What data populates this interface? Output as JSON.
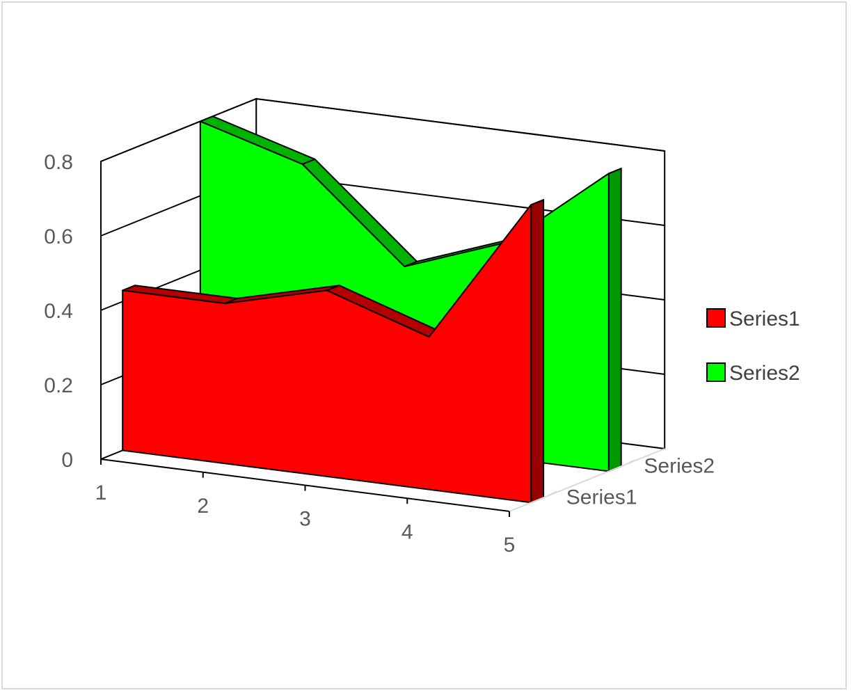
{
  "chart_data": {
    "type": "area",
    "subtype": "3d-area",
    "title": "",
    "xlabel": "",
    "ylabel": "",
    "categories": [
      "1",
      "2",
      "3",
      "4",
      "5"
    ],
    "series": [
      {
        "name": "Series1",
        "values": [
          0.43,
          0.43,
          0.5,
          0.41,
          0.8
        ],
        "color": "#ff0000"
      },
      {
        "name": "Series2",
        "values": [
          0.8,
          0.72,
          0.48,
          0.58,
          0.8
        ],
        "color": "#00ff00"
      }
    ],
    "ylim": [
      0,
      0.8
    ],
    "y_ticks": [
      "0",
      "0.2",
      "0.4",
      "0.6",
      "0.8"
    ],
    "depth_labels": [
      "Series1",
      "Series2"
    ],
    "grid": true,
    "legend_position": "right"
  }
}
